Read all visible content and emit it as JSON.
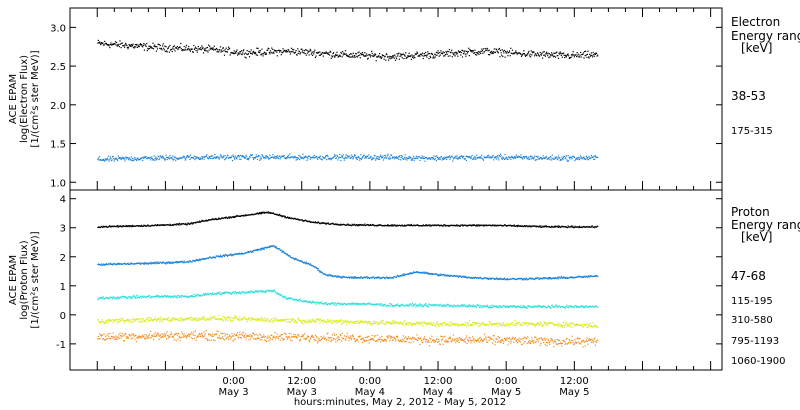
{
  "chart_data": [
    {
      "type": "scatter",
      "panel": "electron",
      "ylabel": [
        "ACE EPAM",
        "log(Electron Flux)",
        "[1/(cm²s ster MeV)]"
      ],
      "ylim": [
        0.9,
        3.25
      ],
      "yticks": [
        "1.0",
        "1.5",
        "2.0",
        "2.5",
        "3.0"
      ],
      "ytick_values": [
        1.0,
        1.5,
        2.0,
        2.5,
        3.0
      ],
      "legend_title": [
        "Electron",
        "Energy ranges",
        "[keV]"
      ],
      "series": [
        {
          "name": "38-53",
          "color": "#000000",
          "base": 2.72,
          "noise": 0.07,
          "points": [
            [
              0,
              2.8
            ],
            [
              10,
              2.75
            ],
            [
              20,
              2.72
            ],
            [
              26,
              2.68
            ],
            [
              34,
              2.7
            ],
            [
              44,
              2.65
            ],
            [
              52,
              2.63
            ],
            [
              60,
              2.66
            ],
            [
              68,
              2.7
            ],
            [
              74,
              2.67
            ],
            [
              82,
              2.64
            ],
            [
              88,
              2.65
            ]
          ]
        },
        {
          "name": "175-315",
          "color": "#1a82d8",
          "base": 1.33,
          "noise": 0.05,
          "points": [
            [
              0,
              1.3
            ],
            [
              10,
              1.32
            ],
            [
              20,
              1.33
            ],
            [
              30,
              1.33
            ],
            [
              40,
              1.33
            ],
            [
              50,
              1.33
            ],
            [
              60,
              1.32
            ],
            [
              70,
              1.33
            ],
            [
              80,
              1.32
            ],
            [
              88,
              1.32
            ]
          ]
        }
      ]
    },
    {
      "type": "scatter",
      "panel": "proton",
      "ylabel": [
        "ACE EPAM",
        "log(Proton Flux)",
        "[1/(cm²s ster MeV)]"
      ],
      "ylim": [
        -1.9,
        4.3
      ],
      "yticks": [
        "-1",
        "0",
        "1",
        "2",
        "3",
        "4"
      ],
      "ytick_values": [
        -1,
        0,
        1,
        2,
        3,
        4
      ],
      "legend_title": [
        "Proton",
        "Energy ranges",
        "[keV]"
      ],
      "series": [
        {
          "name": "47-68",
          "color": "#000000",
          "noise": 0.04,
          "points": [
            [
              0,
              3.05
            ],
            [
              10,
              3.1
            ],
            [
              16,
              3.15
            ],
            [
              20,
              3.3
            ],
            [
              26,
              3.45
            ],
            [
              30,
              3.55
            ],
            [
              34,
              3.35
            ],
            [
              38,
              3.2
            ],
            [
              44,
              3.12
            ],
            [
              52,
              3.1
            ],
            [
              60,
              3.1
            ],
            [
              70,
              3.1
            ],
            [
              80,
              3.05
            ],
            [
              88,
              3.05
            ]
          ]
        },
        {
          "name": "115-195",
          "color": "#1a82d8",
          "noise": 0.05,
          "points": [
            [
              0,
              1.75
            ],
            [
              10,
              1.8
            ],
            [
              16,
              1.85
            ],
            [
              20,
              2.0
            ],
            [
              26,
              2.15
            ],
            [
              31,
              2.4
            ],
            [
              34,
              2.0
            ],
            [
              38,
              1.7
            ],
            [
              40,
              1.4
            ],
            [
              44,
              1.3
            ],
            [
              52,
              1.3
            ],
            [
              56,
              1.5
            ],
            [
              60,
              1.4
            ],
            [
              66,
              1.3
            ],
            [
              72,
              1.25
            ],
            [
              80,
              1.28
            ],
            [
              88,
              1.35
            ]
          ]
        },
        {
          "name": "310-580",
          "color": "#2ee0d8",
          "noise": 0.07,
          "points": [
            [
              0,
              0.6
            ],
            [
              10,
              0.65
            ],
            [
              16,
              0.65
            ],
            [
              20,
              0.75
            ],
            [
              26,
              0.8
            ],
            [
              31,
              0.85
            ],
            [
              33,
              0.6
            ],
            [
              36,
              0.5
            ],
            [
              40,
              0.4
            ],
            [
              46,
              0.4
            ],
            [
              52,
              0.35
            ],
            [
              60,
              0.35
            ],
            [
              70,
              0.3
            ],
            [
              80,
              0.3
            ],
            [
              88,
              0.3
            ]
          ]
        },
        {
          "name": "795-1193",
          "color": "#d8ec1a",
          "noise": 0.12,
          "points": [
            [
              0,
              -0.2
            ],
            [
              10,
              -0.15
            ],
            [
              20,
              -0.1
            ],
            [
              30,
              -0.15
            ],
            [
              40,
              -0.2
            ],
            [
              50,
              -0.25
            ],
            [
              60,
              -0.3
            ],
            [
              70,
              -0.3
            ],
            [
              80,
              -0.3
            ],
            [
              88,
              -0.35
            ]
          ]
        },
        {
          "name": "1060-1900",
          "color": "#f08c1e",
          "noise": 0.22,
          "points": [
            [
              0,
              -0.75
            ],
            [
              10,
              -0.7
            ],
            [
              20,
              -0.7
            ],
            [
              30,
              -0.75
            ],
            [
              40,
              -0.75
            ],
            [
              50,
              -0.8
            ],
            [
              60,
              -0.85
            ],
            [
              70,
              -0.85
            ],
            [
              80,
              -0.9
            ],
            [
              88,
              -0.9
            ]
          ]
        }
      ]
    }
  ],
  "x_axis": {
    "xlim": [
      -4.8,
      110
    ],
    "major_ticks": [
      0,
      12,
      24,
      36,
      48,
      60,
      72,
      84,
      96,
      108
    ],
    "minor_step": 3,
    "time_labels": [
      {
        "x": 24,
        "time": "0:00",
        "date": "May 3"
      },
      {
        "x": 36,
        "time": "12:00",
        "date": "May 3"
      },
      {
        "x": 48,
        "time": "0:00",
        "date": "May 4"
      },
      {
        "x": 60,
        "time": "12:00",
        "date": "May 4"
      },
      {
        "x": 72,
        "time": "0:00",
        "date": "May 5"
      },
      {
        "x": 84,
        "time": "12:00",
        "date": "May 5"
      }
    ],
    "xlabel": "hours:minutes, May  2, 2012 - May  5, 2012"
  }
}
